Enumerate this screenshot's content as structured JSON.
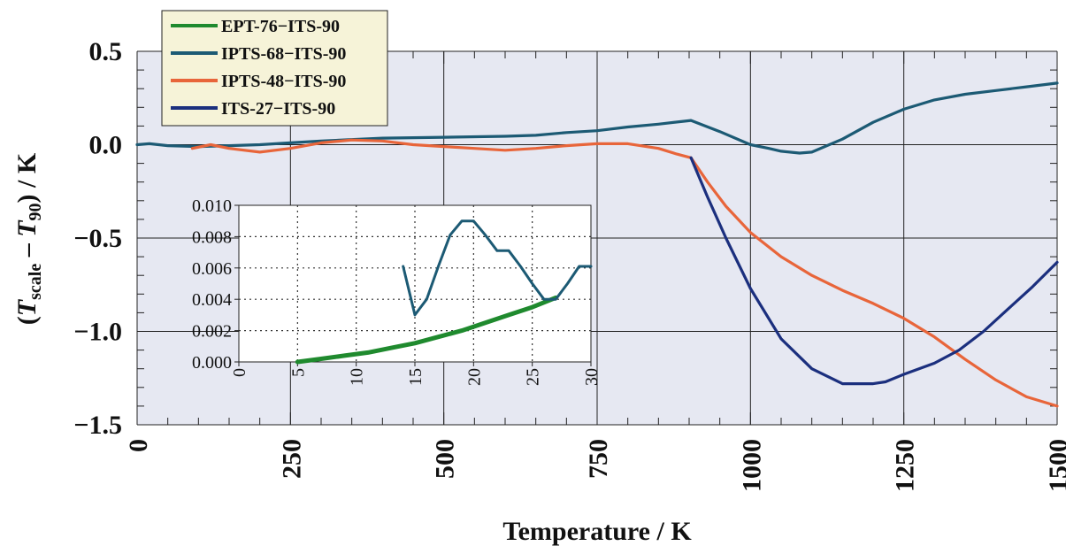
{
  "chart_data": [
    {
      "type": "line",
      "xlabel": "Temperature / K",
      "ylabel_parts": {
        "open": "(",
        "t1": "T",
        "t1_sub": "scale",
        "dash": " – ",
        "t2": "T",
        "t2_sub": "90",
        "tail": ") / K"
      },
      "xlim": [
        0,
        1500
      ],
      "ylim": [
        -1.5,
        0.5
      ],
      "x_ticks": [
        0,
        250,
        500,
        750,
        1000,
        1250,
        1500
      ],
      "x_tick_labels": [
        "0",
        "250",
        "500",
        "750",
        "1000",
        "1250",
        "1500"
      ],
      "y_ticks": [
        0.5,
        0.0,
        -0.5,
        -1.0,
        -1.5
      ],
      "y_tick_labels": [
        "0.5",
        "0.0",
        "−0.5",
        "−1.0",
        "−1.5"
      ],
      "grid": true,
      "legend_position": "top-left",
      "series": [
        {
          "name": "EPT-76−ITS-90",
          "color": "#1f8a2e",
          "x": [],
          "y": []
        },
        {
          "name": "IPTS-68−ITS-90",
          "color": "#1c5a74",
          "x": [
            0,
            20,
            50,
            100,
            150,
            200,
            250,
            300,
            400,
            500,
            600,
            650,
            700,
            750,
            800,
            850,
            903,
            950,
            1000,
            1030,
            1050,
            1080,
            1100,
            1150,
            1200,
            1250,
            1300,
            1350,
            1400,
            1450,
            1500
          ],
          "y": [
            0.0,
            0.005,
            -0.005,
            -0.01,
            -0.005,
            0.0,
            0.01,
            0.02,
            0.035,
            0.04,
            0.045,
            0.05,
            0.065,
            0.075,
            0.095,
            0.11,
            0.13,
            0.07,
            0.0,
            -0.02,
            -0.035,
            -0.045,
            -0.04,
            0.03,
            0.12,
            0.19,
            0.24,
            0.27,
            0.29,
            0.31,
            0.33
          ]
        },
        {
          "name": "IPTS-48−ITS-90",
          "color": "#e8653a",
          "x": [
            90,
            120,
            150,
            200,
            250,
            300,
            350,
            400,
            450,
            500,
            550,
            600,
            650,
            700,
            750,
            800,
            850,
            880,
            903,
            930,
            960,
            1000,
            1050,
            1100,
            1150,
            1200,
            1250,
            1300,
            1350,
            1400,
            1450,
            1500
          ],
          "y": [
            -0.02,
            0.0,
            -0.02,
            -0.04,
            -0.02,
            0.01,
            0.025,
            0.02,
            0.0,
            -0.01,
            -0.02,
            -0.03,
            -0.02,
            -0.005,
            0.005,
            0.005,
            -0.02,
            -0.05,
            -0.07,
            -0.2,
            -0.33,
            -0.47,
            -0.6,
            -0.7,
            -0.78,
            -0.85,
            -0.93,
            -1.03,
            -1.15,
            -1.26,
            -1.35,
            -1.4
          ]
        },
        {
          "name": "ITS-27−ITS-90",
          "color": "#1b2f7e",
          "x": [
            903,
            930,
            960,
            1000,
            1050,
            1100,
            1150,
            1200,
            1220,
            1250,
            1300,
            1340,
            1380,
            1420,
            1460,
            1500
          ],
          "y": [
            -0.07,
            -0.28,
            -0.5,
            -0.77,
            -1.04,
            -1.2,
            -1.28,
            -1.28,
            -1.27,
            -1.23,
            -1.17,
            -1.1,
            -1.0,
            -0.88,
            -0.76,
            -0.63
          ]
        }
      ]
    },
    {
      "type": "line",
      "xlim": [
        0,
        30
      ],
      "ylim": [
        0.0,
        0.01
      ],
      "x_ticks": [
        0,
        5,
        10,
        15,
        20,
        25,
        30
      ],
      "x_tick_labels": [
        "0",
        "5",
        "10",
        "15",
        "20",
        "25",
        "30"
      ],
      "y_ticks": [
        0.0,
        0.002,
        0.004,
        0.006,
        0.008,
        0.01
      ],
      "y_tick_labels": [
        "0.000",
        "0.002",
        "0.004",
        "0.006",
        "0.008",
        "0.010"
      ],
      "grid": true,
      "series": [
        {
          "color": "#1f8a2e",
          "x": [
            5,
            7,
            9,
            11,
            13,
            15,
            17,
            19,
            21,
            23,
            25,
            27
          ],
          "y": [
            0.0,
            0.0002,
            0.0004,
            0.0006,
            0.0009,
            0.0012,
            0.0016,
            0.002,
            0.0025,
            0.003,
            0.0035,
            0.0041
          ]
        },
        {
          "color": "#1c5a74",
          "x": [
            14,
            15,
            16,
            17,
            18,
            19,
            20,
            21,
            22,
            23,
            24,
            25,
            26,
            27,
            28,
            29,
            30
          ],
          "y": [
            0.0061,
            0.003,
            0.004,
            0.0061,
            0.0081,
            0.009,
            0.009,
            0.0081,
            0.0071,
            0.0071,
            0.0061,
            0.005,
            0.004,
            0.004,
            0.005,
            0.0061,
            0.0061
          ]
        }
      ]
    }
  ],
  "colors": {
    "plot_bg": "#e6e8f2",
    "grid": "#222222"
  }
}
